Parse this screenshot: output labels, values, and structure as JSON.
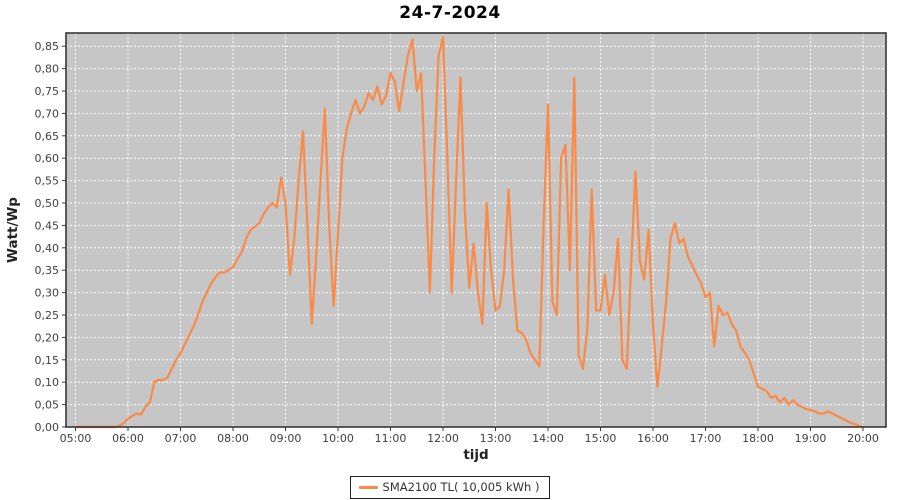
{
  "title": "24-7-2024",
  "axes": {
    "x_label": "tijd",
    "y_label": "Watt/Wp",
    "x_tick_labels": [
      "05:00",
      "06:00",
      "07:00",
      "08:00",
      "09:00",
      "10:00",
      "11:00",
      "12:00",
      "13:00",
      "14:00",
      "15:00",
      "16:00",
      "17:00",
      "18:00",
      "19:00",
      "20:00"
    ],
    "x_tick_hours": [
      5,
      6,
      7,
      8,
      9,
      10,
      11,
      12,
      13,
      14,
      15,
      16,
      17,
      18,
      19,
      20
    ],
    "y_tick_labels": [
      "0,00",
      "0,05",
      "0,10",
      "0,15",
      "0,20",
      "0,25",
      "0,30",
      "0,35",
      "0,40",
      "0,45",
      "0,50",
      "0,55",
      "0,60",
      "0,65",
      "0,70",
      "0,75",
      "0,80",
      "0,85"
    ],
    "y_tick_step": 0.05,
    "y_min": 0.0,
    "y_max": 0.85,
    "grid": "on"
  },
  "legend": {
    "label": "SMA2100 TL( 10,005 kWh )",
    "position": "bottom-center"
  },
  "colors": {
    "page_bg": "#ffffff",
    "plot_bg": "#c6c6c6",
    "grid": "#ffffff",
    "series": "#fb8a47",
    "axis": "#3a3a3a",
    "tick_label": "#3f3f3f",
    "axis_title": "#222222",
    "title": "#000000"
  },
  "chart_data": {
    "type": "line",
    "title": "24-7-2024",
    "xlabel": "tijd",
    "ylabel": "Watt/Wp",
    "xlim_hours": [
      5,
      20
    ],
    "ylim": [
      0.0,
      0.85
    ],
    "legend_position": "bottom",
    "series": [
      {
        "name": "SMA2100 TL( 10,005 kWh )",
        "color": "#fb8a47",
        "x_start_hour": 5,
        "x_step_minutes": 5,
        "unit": "Watt/Wp",
        "values": [
          0,
          0,
          0,
          0,
          0,
          0,
          0,
          0,
          0,
          0,
          0.003,
          0.008,
          0.018,
          0.025,
          0.03,
          0.028,
          0.045,
          0.055,
          0.1,
          0.105,
          0.105,
          0.11,
          0.13,
          0.15,
          0.165,
          0.185,
          0.205,
          0.225,
          0.25,
          0.28,
          0.3,
          0.32,
          0.335,
          0.345,
          0.345,
          0.35,
          0.357,
          0.375,
          0.39,
          0.42,
          0.44,
          0.447,
          0.455,
          0.475,
          0.49,
          0.5,
          0.49,
          0.557,
          0.5,
          0.34,
          0.42,
          0.55,
          0.66,
          0.45,
          0.23,
          0.38,
          0.55,
          0.71,
          0.45,
          0.27,
          0.43,
          0.6,
          0.665,
          0.7,
          0.73,
          0.7,
          0.715,
          0.745,
          0.73,
          0.76,
          0.72,
          0.74,
          0.79,
          0.77,
          0.705,
          0.77,
          0.83,
          0.865,
          0.75,
          0.79,
          0.55,
          0.3,
          0.6,
          0.83,
          0.87,
          0.6,
          0.3,
          0.55,
          0.78,
          0.48,
          0.31,
          0.41,
          0.3,
          0.23,
          0.5,
          0.35,
          0.26,
          0.27,
          0.35,
          0.53,
          0.33,
          0.215,
          0.21,
          0.195,
          0.165,
          0.15,
          0.135,
          0.45,
          0.72,
          0.28,
          0.25,
          0.6,
          0.63,
          0.35,
          0.78,
          0.16,
          0.13,
          0.22,
          0.53,
          0.26,
          0.26,
          0.34,
          0.25,
          0.3,
          0.42,
          0.15,
          0.13,
          0.36,
          0.57,
          0.37,
          0.33,
          0.44,
          0.23,
          0.09,
          0.18,
          0.28,
          0.42,
          0.455,
          0.41,
          0.42,
          0.38,
          0.36,
          0.34,
          0.32,
          0.29,
          0.3,
          0.18,
          0.27,
          0.25,
          0.255,
          0.23,
          0.215,
          0.18,
          0.165,
          0.15,
          0.12,
          0.09,
          0.085,
          0.08,
          0.065,
          0.07,
          0.055,
          0.065,
          0.05,
          0.06,
          0.05,
          0.045,
          0.04,
          0.038,
          0.035,
          0.03,
          0.03,
          0.035,
          0.03,
          0.025,
          0.02,
          0.015,
          0.01,
          0.007,
          0.003,
          0.0
        ]
      }
    ]
  }
}
